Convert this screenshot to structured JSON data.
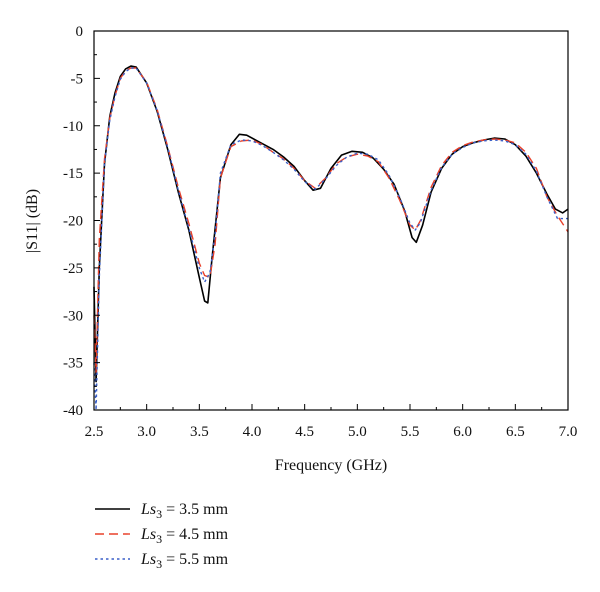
{
  "chart_data": {
    "type": "line",
    "xlabel": "Frequency (GHz)",
    "ylabel": "|S11| (dB)",
    "xlim": [
      2.5,
      7.0
    ],
    "ylim": [
      -40,
      0
    ],
    "xticks": [
      "2.5",
      "3.0",
      "3.5",
      "4.0",
      "4.5",
      "5.0",
      "5.5",
      "6.0",
      "6.5",
      "7.0"
    ],
    "yticks": [
      "0",
      "-5",
      "-10",
      "-15",
      "-20",
      "-25",
      "-30",
      "-35",
      "-40"
    ],
    "grid": false,
    "legend_position": "bottom-left",
    "series": [
      {
        "name": "Ls3 = 3.5 mm",
        "legend": {
          "prefix": "Ls",
          "sub": "3",
          "suffix": " = 3.5 mm"
        },
        "color": "#000000",
        "dash": "solid",
        "x": [
          2.5,
          2.52,
          2.55,
          2.6,
          2.65,
          2.7,
          2.75,
          2.8,
          2.85,
          2.9,
          3.0,
          3.1,
          3.2,
          3.3,
          3.4,
          3.5,
          3.55,
          3.58,
          3.62,
          3.7,
          3.8,
          3.88,
          3.95,
          4.05,
          4.2,
          4.3,
          4.4,
          4.5,
          4.58,
          4.65,
          4.75,
          4.85,
          4.95,
          5.05,
          5.15,
          5.25,
          5.35,
          5.45,
          5.52,
          5.56,
          5.62,
          5.7,
          5.8,
          5.9,
          6.0,
          6.1,
          6.2,
          6.3,
          6.4,
          6.5,
          6.6,
          6.7,
          6.8,
          6.88,
          6.95,
          7.0
        ],
        "y": [
          -27,
          -37,
          -25,
          -14,
          -9,
          -6.5,
          -4.8,
          -4,
          -3.7,
          -3.8,
          -5.5,
          -8.5,
          -12.5,
          -17,
          -21,
          -26,
          -28.5,
          -28.7,
          -24,
          -15.5,
          -12,
          -10.9,
          -11,
          -11.6,
          -12.5,
          -13.3,
          -14.3,
          -15.8,
          -16.8,
          -16.6,
          -14.5,
          -13.1,
          -12.7,
          -12.8,
          -13.4,
          -14.6,
          -16.2,
          -19,
          -21.8,
          -22.3,
          -20.5,
          -17,
          -14.5,
          -13,
          -12.2,
          -11.8,
          -11.5,
          -11.3,
          -11.4,
          -12,
          -13.2,
          -15,
          -17.2,
          -18.8,
          -19.2,
          -18.8
        ]
      },
      {
        "name": "Ls3 = 4.5 mm",
        "legend": {
          "prefix": "Ls",
          "sub": "3",
          "suffix": " = 4.5 mm"
        },
        "color": "#e8402a",
        "dash": "dashed",
        "x": [
          2.5,
          2.52,
          2.55,
          2.6,
          2.65,
          2.7,
          2.75,
          2.8,
          2.85,
          2.9,
          3.0,
          3.1,
          3.2,
          3.3,
          3.4,
          3.5,
          3.55,
          3.6,
          3.65,
          3.7,
          3.8,
          3.9,
          4.0,
          4.1,
          4.2,
          4.3,
          4.4,
          4.5,
          4.6,
          4.7,
          4.8,
          4.9,
          5.0,
          5.1,
          5.2,
          5.3,
          5.4,
          5.5,
          5.55,
          5.6,
          5.7,
          5.8,
          5.9,
          6.0,
          6.1,
          6.2,
          6.3,
          6.4,
          6.5,
          6.6,
          6.7,
          6.8,
          6.9,
          7.0
        ],
        "y": [
          -30,
          -36,
          -22,
          -13.5,
          -9.2,
          -6.8,
          -5,
          -4.2,
          -3.9,
          -3.9,
          -5.4,
          -8.3,
          -12.2,
          -16.5,
          -20.3,
          -24.5,
          -25.8,
          -26,
          -22.5,
          -15.5,
          -12.2,
          -11.6,
          -11.5,
          -12,
          -12.8,
          -13.5,
          -14.5,
          -15.8,
          -16.6,
          -15.5,
          -14,
          -13.3,
          -13,
          -13.2,
          -13.8,
          -15.5,
          -17.8,
          -20.5,
          -21,
          -20,
          -16.5,
          -14.2,
          -12.8,
          -12.1,
          -11.7,
          -11.5,
          -11.4,
          -11.5,
          -11.8,
          -12.8,
          -14.5,
          -17.5,
          -19.5,
          -21.2
        ]
      },
      {
        "name": "Ls3 = 5.5 mm",
        "legend": {
          "prefix": "Ls",
          "sub": "3",
          "suffix": " = 5.5 mm"
        },
        "color": "#3a5fc8",
        "dash": "dotted",
        "x": [
          2.5,
          2.52,
          2.55,
          2.6,
          2.65,
          2.7,
          2.75,
          2.8,
          2.85,
          2.9,
          3.0,
          3.1,
          3.2,
          3.3,
          3.4,
          3.5,
          3.55,
          3.6,
          3.65,
          3.7,
          3.8,
          3.9,
          4.0,
          4.1,
          4.2,
          4.3,
          4.4,
          4.5,
          4.6,
          4.7,
          4.8,
          4.9,
          5.0,
          5.1,
          5.2,
          5.3,
          5.4,
          5.5,
          5.55,
          5.6,
          5.7,
          5.8,
          5.9,
          6.0,
          6.1,
          6.2,
          6.3,
          6.4,
          6.5,
          6.6,
          6.7,
          6.8,
          6.9,
          7.0
        ],
        "y": [
          -35,
          -40,
          -26,
          -14,
          -9.4,
          -6.9,
          -5.1,
          -4.3,
          -3.9,
          -3.9,
          -5.5,
          -8.4,
          -12.3,
          -16.8,
          -20.8,
          -25,
          -26.5,
          -25.5,
          -21.5,
          -15,
          -12,
          -11.5,
          -11.6,
          -12.1,
          -12.8,
          -13.6,
          -14.6,
          -15.9,
          -16.7,
          -15.6,
          -14.2,
          -13.3,
          -12.9,
          -13,
          -13.6,
          -15.2,
          -17.5,
          -20.3,
          -21,
          -20.2,
          -16.8,
          -14.4,
          -13,
          -12.3,
          -11.8,
          -11.6,
          -11.5,
          -11.6,
          -12,
          -13,
          -14.8,
          -17.5,
          -19.8,
          -19.8
        ]
      }
    ]
  }
}
